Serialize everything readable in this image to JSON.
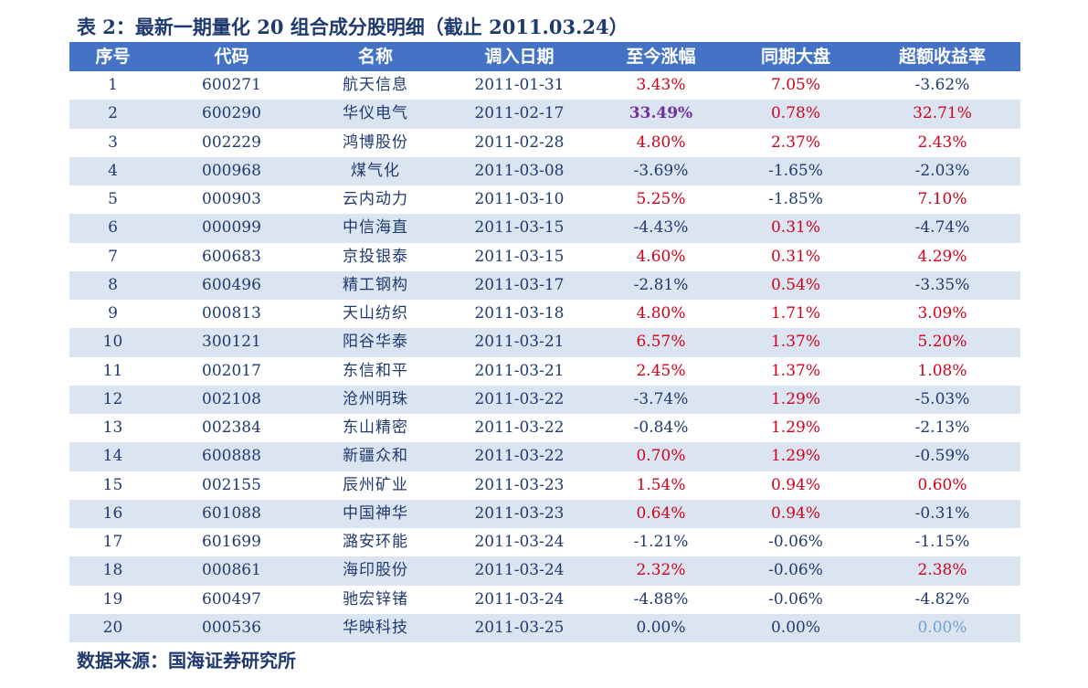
{
  "title": "表 2：最新一期量化 20 组合成分股明细（截止 2011.03.24）",
  "source": "数据来源：国海证券研究所",
  "headers": [
    "序号",
    "代码",
    "名称",
    "调入日期",
    "至今涨幅",
    "同期大盘",
    "超额收益率"
  ],
  "rows": [
    [
      "1",
      "600271",
      "航天信息",
      "2011-01-31",
      "3.43%",
      "7.05%",
      "-3.62%"
    ],
    [
      "2",
      "600290",
      "华仪电气",
      "2011-02-17",
      "33.49%",
      "0.78%",
      "32.71%"
    ],
    [
      "3",
      "002229",
      "鸿博股份",
      "2011-02-28",
      "4.80%",
      "2.37%",
      "2.43%"
    ],
    [
      "4",
      "000968",
      "煤气化",
      "2011-03-08",
      "-3.69%",
      "-1.65%",
      "-2.03%"
    ],
    [
      "5",
      "000903",
      "云内动力",
      "2011-03-10",
      "5.25%",
      "-1.85%",
      "7.10%"
    ],
    [
      "6",
      "000099",
      "中信海直",
      "2011-03-15",
      "-4.43%",
      "0.31%",
      "-4.74%"
    ],
    [
      "7",
      "600683",
      "京投银泰",
      "2011-03-15",
      "4.60%",
      "0.31%",
      "4.29%"
    ],
    [
      "8",
      "600496",
      "精工钢构",
      "2011-03-17",
      "-2.81%",
      "0.54%",
      "-3.35%"
    ],
    [
      "9",
      "000813",
      "天山纺织",
      "2011-03-18",
      "4.80%",
      "1.71%",
      "3.09%"
    ],
    [
      "10",
      "300121",
      "阳谷华泰",
      "2011-03-21",
      "6.57%",
      "1.37%",
      "5.20%"
    ],
    [
      "11",
      "002017",
      "东信和平",
      "2011-03-21",
      "2.45%",
      "1.37%",
      "1.08%"
    ],
    [
      "12",
      "002108",
      "沧州明珠",
      "2011-03-22",
      "-3.74%",
      "1.29%",
      "-5.03%"
    ],
    [
      "13",
      "002384",
      "东山精密",
      "2011-03-22",
      "-0.84%",
      "1.29%",
      "-2.13%"
    ],
    [
      "14",
      "600888",
      "新疆众和",
      "2011-03-22",
      "0.70%",
      "1.29%",
      "-0.59%"
    ],
    [
      "15",
      "002155",
      "辰州矿业",
      "2011-03-23",
      "1.54%",
      "0.94%",
      "0.60%"
    ],
    [
      "16",
      "601088",
      "中国神华",
      "2011-03-23",
      "0.64%",
      "0.94%",
      "-0.31%"
    ],
    [
      "17",
      "601699",
      "潞安环能",
      "2011-03-24",
      "-1.21%",
      "-0.06%",
      "-1.15%"
    ],
    [
      "18",
      "000861",
      "海印股份",
      "2011-03-24",
      "2.32%",
      "-0.06%",
      "2.38%"
    ],
    [
      "19",
      "600497",
      "驰宏锌锗",
      "2011-03-24",
      "-4.88%",
      "-0.06%",
      "-4.82%"
    ],
    [
      "20",
      "000536",
      "华映科技",
      "2011-03-25",
      "0.00%",
      "0.00%",
      "0.00%"
    ]
  ],
  "colors": {
    "header_bg": "#4472c4",
    "alt_row_bg": "#dbe5f1",
    "positive": "#d0021b",
    "text": "#1f3a6e",
    "highlight": "#7030a0"
  }
}
